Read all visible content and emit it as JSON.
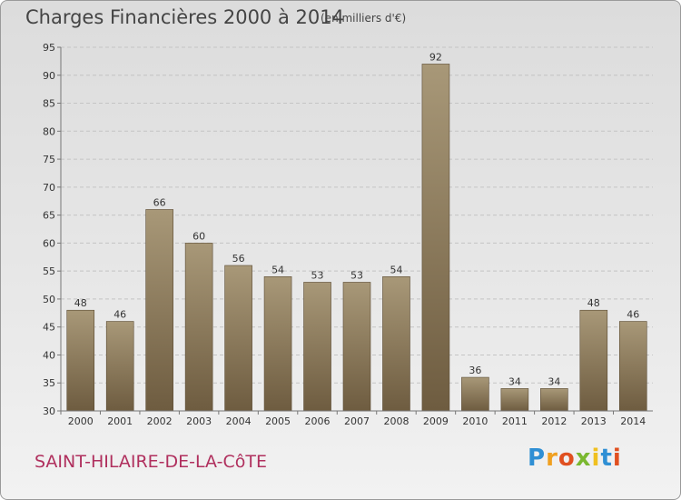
{
  "chart_data": {
    "type": "bar",
    "title": "Charges Financières 2000 à 2014",
    "subtitle": "(en milliers d'€)",
    "categories": [
      "2000",
      "2001",
      "2002",
      "2003",
      "2004",
      "2005",
      "2006",
      "2007",
      "2008",
      "2009",
      "2010",
      "2011",
      "2012",
      "2013",
      "2014"
    ],
    "values": [
      48,
      46,
      66,
      60,
      56,
      54,
      53,
      53,
      54,
      92,
      36,
      34,
      34,
      48,
      46
    ],
    "ylim": [
      30,
      95
    ],
    "yticks": [
      30,
      35,
      40,
      45,
      50,
      55,
      60,
      65,
      70,
      75,
      80,
      85,
      90,
      95
    ],
    "grid": true,
    "bar_color_top": "#a89878",
    "bar_color_bottom": "#6e5c40"
  },
  "commune": "SAINT-HILAIRE-DE-LA-CôTE",
  "logo": {
    "letters": [
      "P",
      "r",
      "o",
      "x",
      "i",
      "t",
      "i"
    ],
    "colors": [
      "#2f8fd4",
      "#f0a020",
      "#e05020",
      "#7ab830",
      "#f0c020",
      "#2f8fd4",
      "#e05020"
    ]
  },
  "colors": {
    "commune": "#b0305e",
    "title": "#444444"
  }
}
